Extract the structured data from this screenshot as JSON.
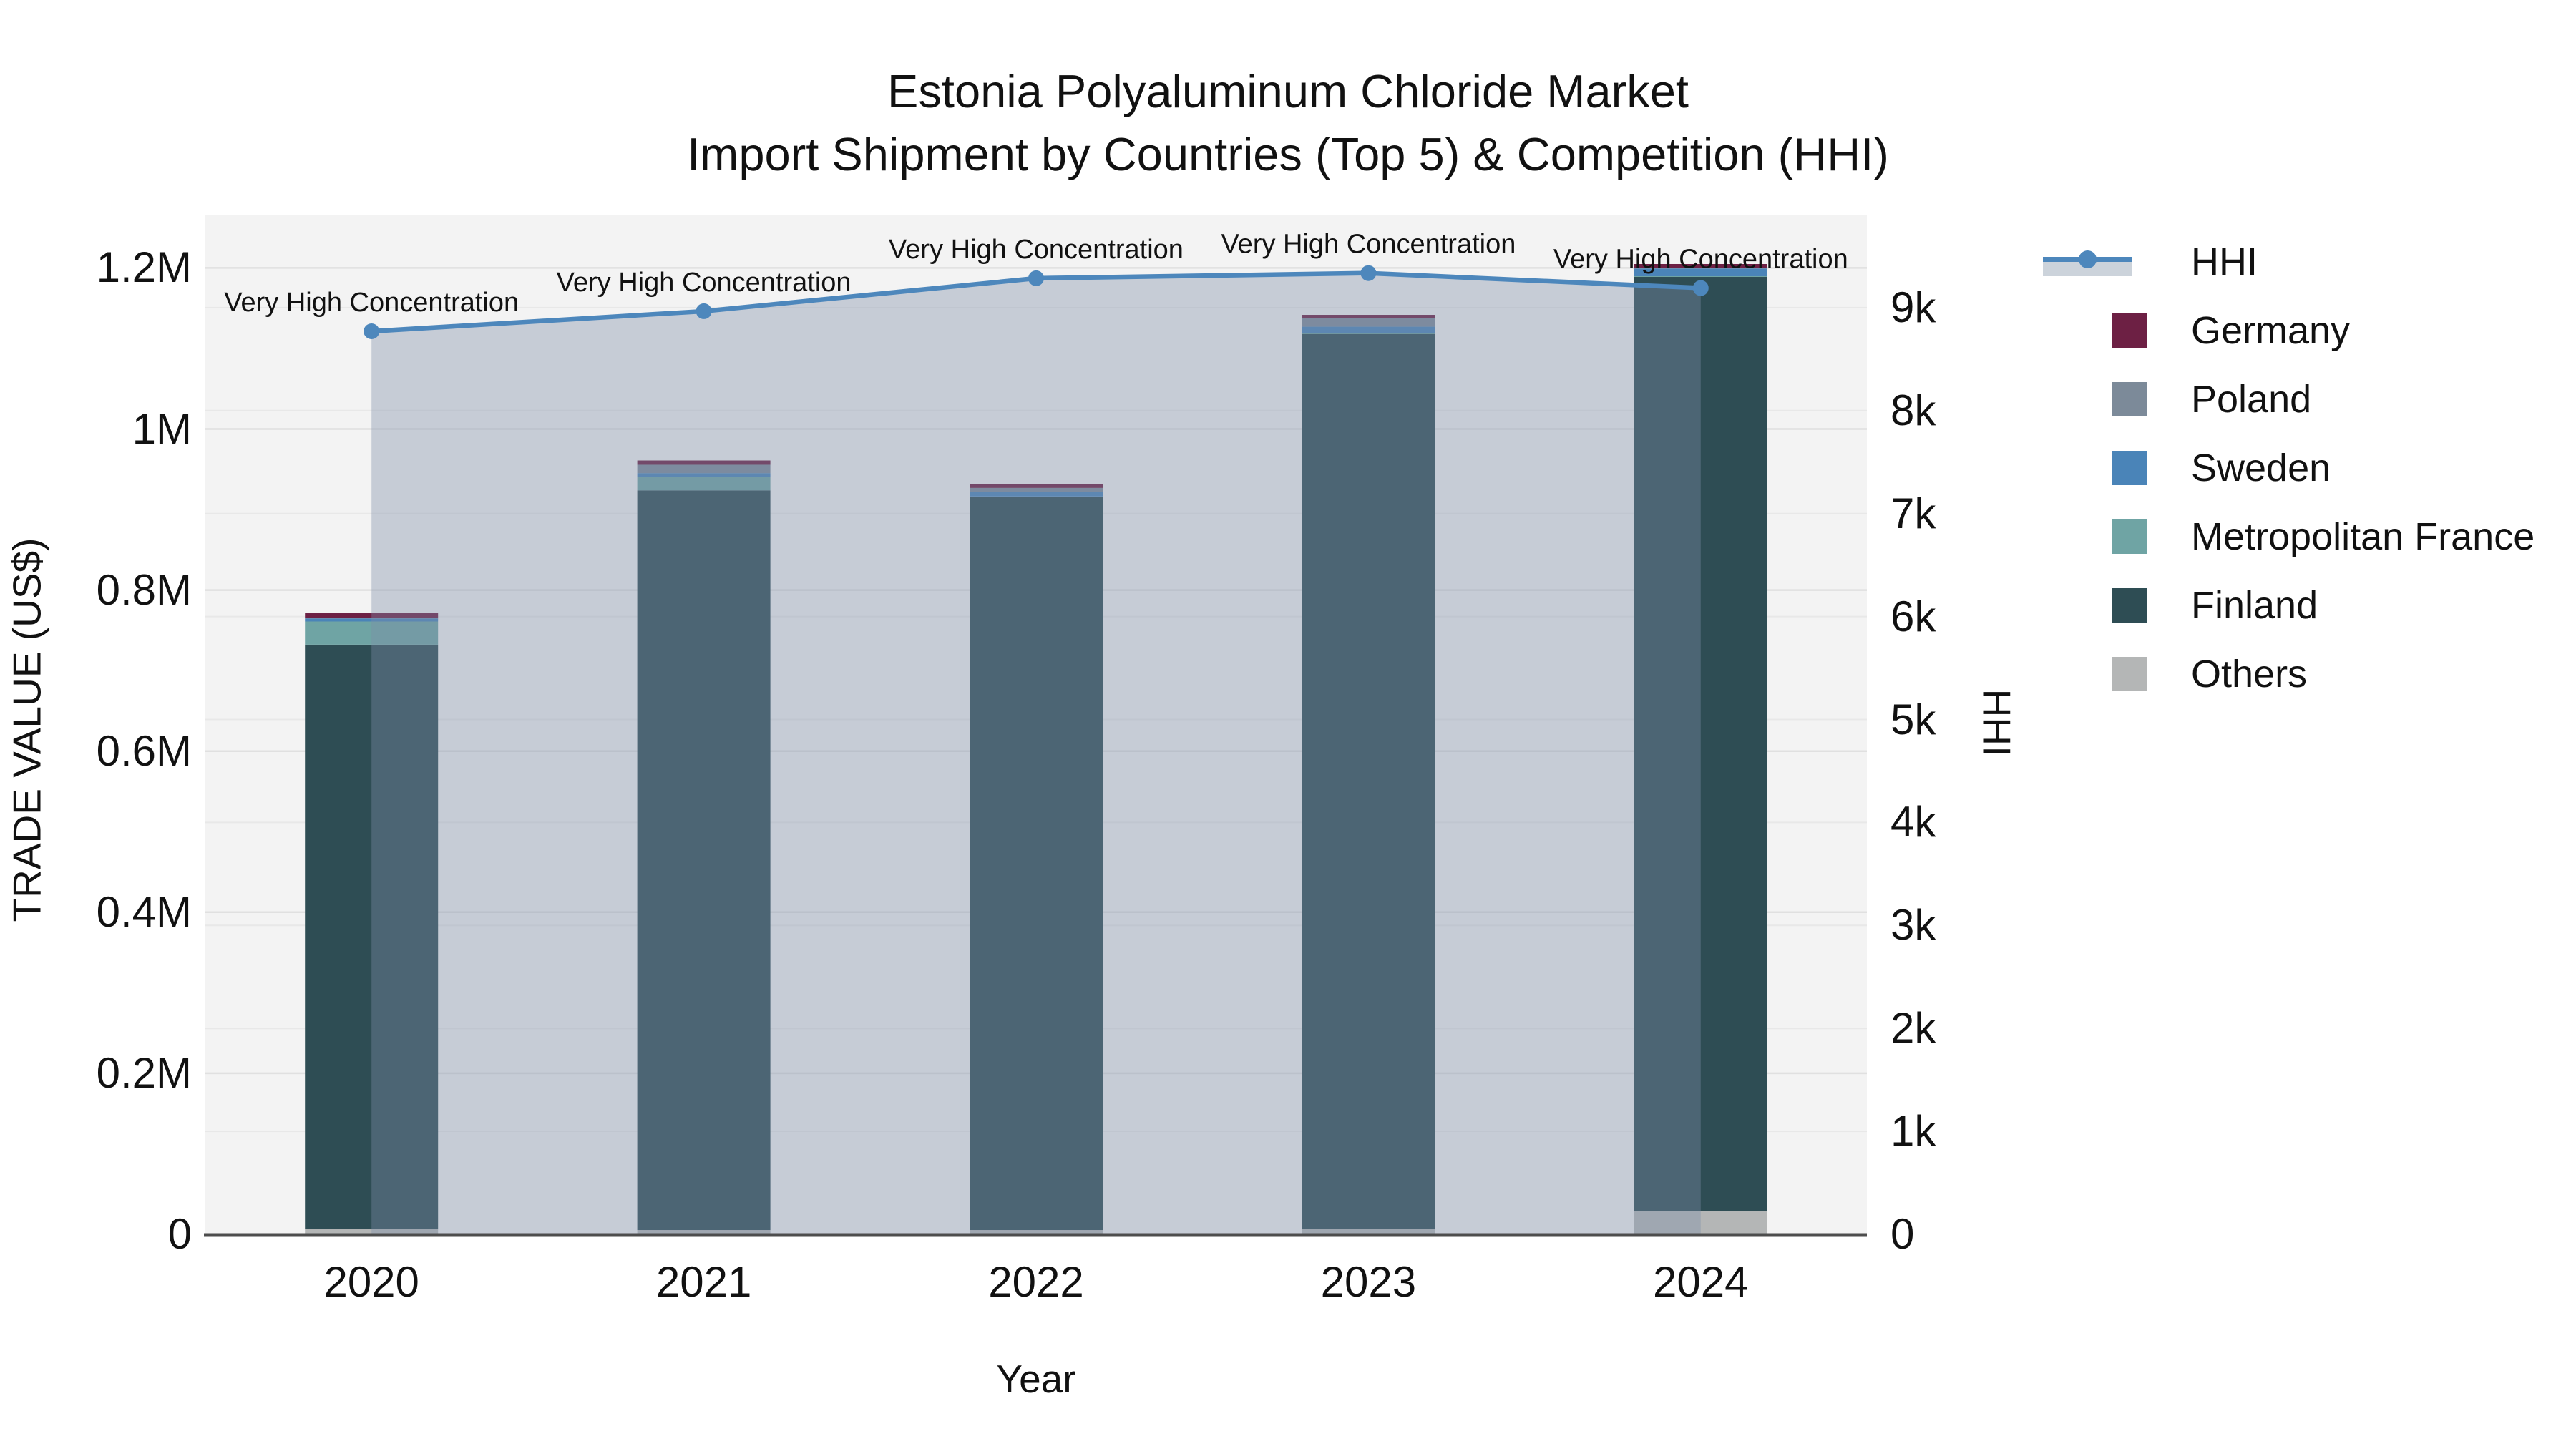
{
  "title": {
    "line1": "Estonia Polyaluminum Chloride Market",
    "line2": "Import Shipment by Countries (Top 5) & Competition (HHI)"
  },
  "axes": {
    "x_title": "Year",
    "y_left_title": "TRADE VALUE (US$)",
    "y_right_title": "HHI",
    "y_left_ticks": [
      {
        "value": 0,
        "label": "0"
      },
      {
        "value": 200000,
        "label": "0.2M"
      },
      {
        "value": 400000,
        "label": "0.4M"
      },
      {
        "value": 600000,
        "label": "0.6M"
      },
      {
        "value": 800000,
        "label": "0.8M"
      },
      {
        "value": 1000000,
        "label": "1M"
      },
      {
        "value": 1200000,
        "label": "1.2M"
      }
    ],
    "y_right_ticks": [
      {
        "value": 0,
        "label": "0"
      },
      {
        "value": 1000,
        "label": "1k"
      },
      {
        "value": 2000,
        "label": "2k"
      },
      {
        "value": 3000,
        "label": "3k"
      },
      {
        "value": 4000,
        "label": "4k"
      },
      {
        "value": 5000,
        "label": "5k"
      },
      {
        "value": 6000,
        "label": "6k"
      },
      {
        "value": 7000,
        "label": "7k"
      },
      {
        "value": 8000,
        "label": "8k"
      },
      {
        "value": 9000,
        "label": "9k"
      }
    ]
  },
  "legend": {
    "items": [
      {
        "label": "HHI",
        "type": "line",
        "color": "#4d87bc",
        "band_color": "#ccd3db"
      },
      {
        "label": "Germany",
        "type": "swatch",
        "color": "#6d2044"
      },
      {
        "label": "Poland",
        "type": "swatch",
        "color": "#7c8a99"
      },
      {
        "label": "Sweden",
        "type": "swatch",
        "color": "#4a84b8"
      },
      {
        "label": "Metropolitan France",
        "type": "swatch",
        "color": "#6fa4a4"
      },
      {
        "label": "Finland",
        "type": "swatch",
        "color": "#2e4d54"
      },
      {
        "label": "Others",
        "type": "swatch",
        "color": "#b4b6b6"
      }
    ]
  },
  "annotation_text": "Very High Concentration",
  "chart_data": {
    "type": "bar",
    "subtype": "stacked bars (left axis, US$) + HHI line with area fill (right axis)",
    "categories": [
      "2020",
      "2021",
      "2022",
      "2023",
      "2024"
    ],
    "stack_order_bottom_to_top": [
      "Others",
      "Finland",
      "Metropolitan France",
      "Sweden",
      "Poland",
      "Germany"
    ],
    "series": [
      {
        "name": "Germany",
        "color": "#6d2044",
        "values": [
          5600,
          5300,
          4400,
          3800,
          4700
        ]
      },
      {
        "name": "Poland",
        "color": "#7c8a99",
        "values": [
          800,
          10400,
          5300,
          10900,
          900
        ]
      },
      {
        "name": "Sweden",
        "color": "#4a84b8",
        "values": [
          3800,
          5100,
          5300,
          8300,
          9500
        ]
      },
      {
        "name": "Metropolitan France",
        "color": "#6fa4a4",
        "values": [
          28800,
          16300,
          900,
          500,
          900
        ]
      },
      {
        "name": "Finland",
        "color": "#2e4d54",
        "values": [
          726000,
          918500,
          910000,
          1112000,
          1159500
        ]
      },
      {
        "name": "Others",
        "color": "#b4b6b6",
        "values": [
          6200,
          5300,
          5300,
          6200,
          29300
        ]
      }
    ],
    "bar_totals": [
      771200,
      960900,
      931200,
      1141700,
      1204800
    ],
    "line_series": {
      "name": "HHI",
      "axis": "right",
      "color": "#4d87bc",
      "area_fill": "rgba(125,143,168,0.38)",
      "values": [
        8770,
        8965,
        9285,
        9335,
        9190
      ],
      "point_annotations": [
        "Very High Concentration",
        "Very High Concentration",
        "Very High Concentration",
        "Very High Concentration",
        "Very High Concentration"
      ]
    },
    "title": "Estonia Polyaluminum Chloride Market — Import Shipment by Countries (Top 5) & Competition (HHI)",
    "xlabel": "Year",
    "ylabel_left": "TRADE VALUE (US$)",
    "ylabel_right": "HHI",
    "y_left_range": [
      0,
      1266000
    ],
    "y_right_range": [
      0,
      9903
    ],
    "grid": true,
    "legend_position": "right"
  },
  "colors": {
    "plot_bg": "#f3f3f3",
    "grid_left": "#e0e0e0",
    "grid_right": "#e8e8e8",
    "axis_line": "#4d4d4d",
    "text": "#111111"
  }
}
